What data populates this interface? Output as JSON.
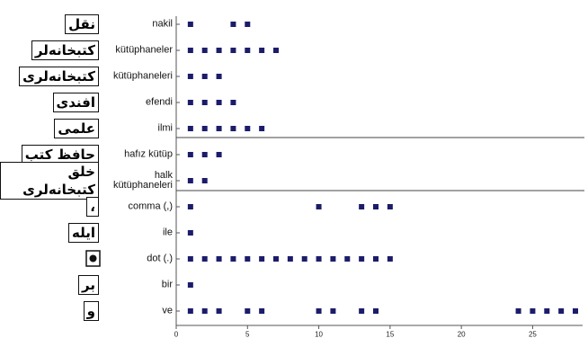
{
  "chart_data": {
    "type": "dotplot",
    "color": "#1c1c6b",
    "xlim": [
      0,
      28
    ],
    "xticks": [
      0,
      5,
      10,
      15,
      20,
      25
    ],
    "rows": [
      {
        "label": "nakil",
        "glyph": "نقل",
        "x": [
          1,
          4,
          5
        ]
      },
      {
        "label": "kütüphaneler",
        "glyph": "كتبخانه‌لر",
        "x": [
          1,
          2,
          3,
          4,
          5,
          6,
          7
        ]
      },
      {
        "label": "kütüphaneleri",
        "glyph": "كتبخانه‌لرى",
        "x": [
          1,
          2,
          3
        ]
      },
      {
        "label": "efendi",
        "glyph": "افندى",
        "x": [
          1,
          2,
          3,
          4
        ]
      },
      {
        "label": "ilmi",
        "glyph": "علمى",
        "x": [
          1,
          2,
          3,
          4,
          5,
          6
        ]
      },
      {
        "label": "hafız kütüp",
        "glyph": "حافظ كتب",
        "x": [
          1,
          2,
          3
        ]
      },
      {
        "label": "halk\nkütüphaneleri",
        "glyph": "خلق كتبخانه‌لرى",
        "x": [
          1,
          2
        ]
      },
      {
        "label": "comma (,)",
        "glyph": "،",
        "x": [
          1,
          10,
          13,
          14,
          15
        ]
      },
      {
        "label": "ile",
        "glyph": "ايله",
        "x": [
          1
        ]
      },
      {
        "label": "dot (.)",
        "glyph": null,
        "x": [
          1,
          2,
          3,
          4,
          5,
          6,
          7,
          8,
          9,
          10,
          11,
          12,
          13,
          14,
          15
        ]
      },
      {
        "label": "bir",
        "glyph": "بر",
        "x": [
          1
        ]
      },
      {
        "label": "ve",
        "glyph": "و",
        "x": [
          1,
          2,
          3,
          5,
          6,
          10,
          11,
          13,
          14,
          24,
          25,
          26,
          27,
          28
        ]
      }
    ]
  }
}
